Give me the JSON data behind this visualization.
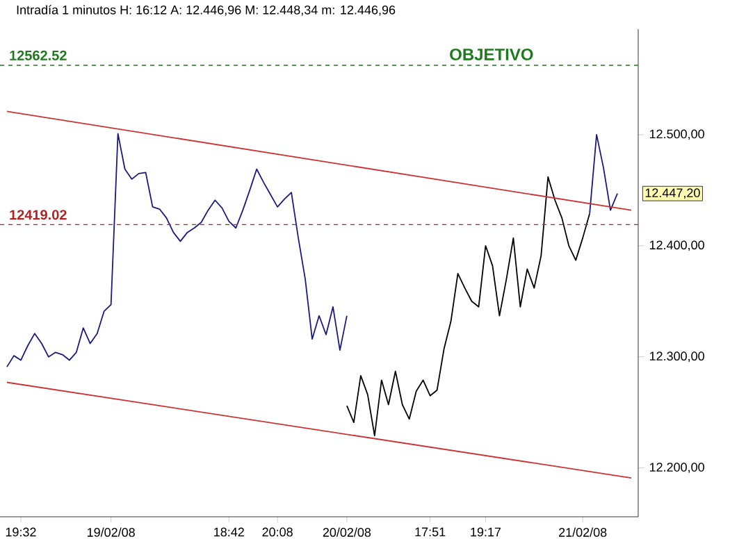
{
  "chart_data": {
    "type": "line",
    "title": "Intradía 1 minutos  H: 16:12  A: 12.446,96  M: 12.448,34  m: 12.446,96",
    "annotations": [
      "OBJETIVO",
      "12.447,20"
    ],
    "categories": [
      null,
      null,
      null,
      "19:32",
      null,
      null,
      null,
      null,
      null,
      null,
      null,
      null,
      null,
      null,
      null,
      null,
      "19/02/08",
      null,
      null,
      null,
      null,
      null,
      null,
      null,
      null,
      null,
      null,
      null,
      null,
      null,
      null,
      null,
      null,
      "18:42",
      null,
      null,
      null,
      null,
      null,
      null,
      "20:08",
      null,
      null,
      null,
      null,
      null,
      null,
      null,
      null,
      null,
      "20/02/08",
      null,
      null,
      null,
      null,
      null,
      null,
      null,
      null,
      null,
      null,
      null,
      "17:51",
      null,
      null,
      null,
      null,
      null,
      null,
      null,
      "19:17",
      null,
      null,
      null,
      null,
      null,
      null,
      null,
      null,
      null,
      null,
      null,
      null,
      null,
      "21/02/08",
      null,
      null,
      null,
      null,
      null,
      null,
      null,
      null
    ],
    "ylim": [
      12156,
      12595
    ],
    "yticks": [
      {
        "value": 12200,
        "label": "12.200,00"
      },
      {
        "value": 12300,
        "label": "12.300,00"
      },
      {
        "value": 12400,
        "label": "12.400,00"
      },
      {
        "value": 12500,
        "label": "12.500,00"
      }
    ],
    "marker": "none",
    "series": [
      {
        "color": "#1a1a80",
        "values": [
          null,
          12291,
          12301,
          12297,
          12310,
          12321,
          12312,
          12300,
          12304,
          12302,
          12297,
          12304,
          12326,
          12312,
          12321,
          12341,
          12347,
          12501,
          12469,
          12460,
          12465,
          12466,
          12435,
          12433,
          12425,
          12412,
          12404,
          12412,
          12416,
          12421,
          12432,
          12441,
          12434,
          12422,
          12416,
          12432,
          12450,
          12469,
          12457,
          12446,
          12435,
          12442,
          12448,
          12407,
          12370,
          12316,
          12337,
          12320,
          12345,
          12306,
          12337,
          null,
          null,
          null,
          null,
          null,
          null,
          null,
          null,
          null,
          null,
          null,
          null,
          null,
          null,
          null,
          null,
          null,
          null,
          null,
          null,
          null,
          null,
          null,
          null,
          null,
          null,
          null,
          null,
          null,
          null,
          null,
          null,
          null,
          null,
          null,
          null,
          null,
          null,
          null,
          null,
          null,
          null
        ]
      },
      {
        "color": "#000000",
        "values": [
          null,
          null,
          null,
          null,
          null,
          null,
          null,
          null,
          null,
          null,
          null,
          null,
          null,
          null,
          null,
          null,
          null,
          null,
          null,
          null,
          null,
          null,
          null,
          null,
          null,
          null,
          null,
          null,
          null,
          null,
          null,
          null,
          null,
          null,
          null,
          null,
          null,
          null,
          null,
          null,
          null,
          null,
          null,
          null,
          null,
          null,
          null,
          null,
          null,
          null,
          12256,
          12241,
          12283,
          12266,
          12229,
          12279,
          12257,
          12287,
          12257,
          12244,
          12269,
          12279,
          12265,
          12270,
          12307,
          12332,
          12375,
          12362,
          12350,
          12345,
          12400,
          12382,
          12337,
          12370,
          12407,
          12345,
          12379,
          12362,
          12391,
          12462,
          12441,
          12425,
          12400,
          12387,
          12407,
          12429,
          null,
          null,
          null,
          null,
          null,
          null,
          null
        ]
      },
      {
        "color": "#1a1a80",
        "values": [
          null,
          null,
          null,
          null,
          null,
          null,
          null,
          null,
          null,
          null,
          null,
          null,
          null,
          null,
          null,
          null,
          null,
          null,
          null,
          null,
          null,
          null,
          null,
          null,
          null,
          null,
          null,
          null,
          null,
          null,
          null,
          null,
          null,
          null,
          null,
          null,
          null,
          null,
          null,
          null,
          null,
          null,
          null,
          null,
          null,
          null,
          null,
          null,
          null,
          null,
          null,
          null,
          null,
          null,
          null,
          null,
          null,
          null,
          null,
          null,
          null,
          null,
          null,
          null,
          null,
          null,
          null,
          null,
          null,
          null,
          null,
          null,
          null,
          null,
          null,
          null,
          null,
          null,
          null,
          null,
          null,
          null,
          null,
          null,
          null,
          12429,
          12500,
          12470,
          12432,
          12447,
          null,
          null,
          null
        ]
      },
      {
        "color": "#cc3333",
        "values": [
          null,
          12521,
          null,
          null,
          null,
          null,
          null,
          null,
          null,
          null,
          null,
          null,
          null,
          null,
          null,
          null,
          null,
          null,
          null,
          null,
          null,
          null,
          null,
          null,
          null,
          null,
          null,
          null,
          null,
          null,
          null,
          null,
          null,
          null,
          null,
          null,
          null,
          null,
          null,
          null,
          null,
          null,
          null,
          null,
          null,
          null,
          null,
          null,
          null,
          null,
          null,
          null,
          null,
          null,
          null,
          null,
          null,
          null,
          null,
          null,
          null,
          null,
          null,
          null,
          null,
          null,
          null,
          null,
          null,
          null,
          null,
          null,
          null,
          null,
          null,
          null,
          null,
          null,
          null,
          null,
          null,
          null,
          null,
          null,
          null,
          null,
          null,
          null,
          null,
          null,
          null,
          12432,
          null
        ]
      },
      {
        "color": "#cc3333",
        "values": [
          null,
          12277,
          null,
          null,
          null,
          null,
          null,
          null,
          null,
          null,
          null,
          null,
          null,
          null,
          null,
          null,
          null,
          null,
          null,
          null,
          null,
          null,
          null,
          null,
          null,
          null,
          null,
          null,
          null,
          null,
          null,
          null,
          null,
          null,
          null,
          null,
          null,
          null,
          null,
          null,
          null,
          null,
          null,
          null,
          null,
          null,
          null,
          null,
          null,
          null,
          null,
          null,
          null,
          null,
          null,
          null,
          null,
          null,
          null,
          null,
          null,
          null,
          null,
          null,
          null,
          null,
          null,
          null,
          null,
          null,
          null,
          null,
          null,
          null,
          null,
          null,
          null,
          null,
          null,
          null,
          null,
          null,
          null,
          null,
          null,
          null,
          null,
          null,
          null,
          null,
          null,
          12191,
          null
        ]
      }
    ],
    "ref_lines": [
      {
        "axis": "y",
        "value": 12562.52,
        "label": "12562.52",
        "color": "#1f7a1f",
        "line_style": "dashed"
      },
      {
        "axis": "y",
        "value": 12419.02,
        "label": "12419.02",
        "color": "#b22222",
        "line_style": "dashed"
      }
    ]
  }
}
